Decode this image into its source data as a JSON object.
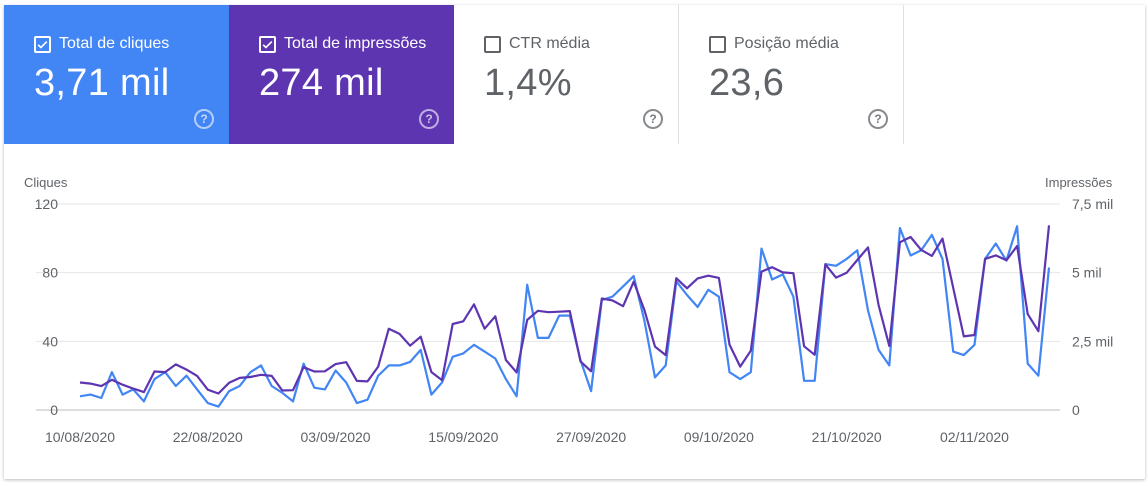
{
  "metrics": [
    {
      "label": "Total de cliques",
      "value": "3,71 mil",
      "checked": true,
      "color": "#4285f4",
      "help_icon": "question-circle-icon"
    },
    {
      "label": "Total de impressões",
      "value": "274 mil",
      "checked": true,
      "color": "#5e35b1",
      "help_icon": "question-circle-icon"
    },
    {
      "label": "CTR média",
      "value": "1,4%",
      "checked": false,
      "help_icon": "question-circle-icon"
    },
    {
      "label": "Posição média",
      "value": "23,6",
      "checked": false,
      "help_icon": "question-circle-icon"
    }
  ],
  "chart_data": {
    "type": "line",
    "x_start": "10/08/2020",
    "x_end": "07/11/2020",
    "x_tick_labels": [
      "10/08/2020",
      "22/08/2020",
      "03/09/2020",
      "15/09/2020",
      "27/09/2020",
      "09/10/2020",
      "21/10/2020",
      "02/11/2020"
    ],
    "y_left": {
      "label": "Cliques",
      "ticks": [
        "0",
        "40",
        "80",
        "120"
      ],
      "ylim": [
        0,
        120
      ]
    },
    "y_right": {
      "label": "Impressões",
      "ticks": [
        "0",
        "2,5 mil",
        "5 mil",
        "7,5 mil"
      ],
      "ylim": [
        0,
        7500
      ]
    },
    "grid": true,
    "series": [
      {
        "axis": "left",
        "color": "#4285f4",
        "values": [
          8,
          9,
          7,
          22,
          9,
          12,
          5,
          18,
          22,
          14,
          20,
          12,
          4,
          2,
          11,
          14,
          22,
          26,
          14,
          10,
          5,
          27,
          13,
          12,
          23,
          16,
          4,
          6,
          20,
          26,
          26,
          28,
          35,
          9,
          16,
          31,
          33,
          38,
          34,
          30,
          18,
          8,
          73,
          42,
          42,
          55,
          55,
          29,
          11,
          64,
          66,
          72,
          78,
          52,
          19,
          26,
          75,
          67,
          60,
          70,
          66,
          22,
          18,
          22,
          94,
          76,
          79,
          66,
          17,
          17,
          85,
          84,
          88,
          93,
          58,
          35,
          26,
          106,
          90,
          93,
          102,
          88,
          34,
          32,
          38,
          88,
          97,
          87,
          107,
          27,
          20,
          83
        ]
      },
      {
        "axis": "right",
        "color": "#5e35b1",
        "values": [
          1000,
          960,
          870,
          1100,
          920,
          780,
          650,
          1400,
          1380,
          1660,
          1470,
          1240,
          740,
          600,
          990,
          1170,
          1200,
          1280,
          1240,
          710,
          720,
          1560,
          1400,
          1410,
          1670,
          1740,
          1060,
          1040,
          1580,
          2960,
          2770,
          2340,
          2670,
          1380,
          1090,
          3130,
          3230,
          3850,
          2960,
          3410,
          1820,
          1370,
          3280,
          3610,
          3560,
          3580,
          3600,
          1770,
          1410,
          4060,
          3990,
          3780,
          4670,
          3640,
          2310,
          2000,
          4800,
          4430,
          4790,
          4890,
          4810,
          2380,
          1580,
          2160,
          5040,
          5200,
          5010,
          4980,
          2320,
          2010,
          5300,
          4820,
          5000,
          5460,
          5920,
          3820,
          2330,
          6110,
          6300,
          5830,
          5610,
          6240,
          4450,
          2680,
          2730,
          5500,
          5630,
          5450,
          5970,
          3490,
          2870,
          6720
        ]
      }
    ]
  }
}
